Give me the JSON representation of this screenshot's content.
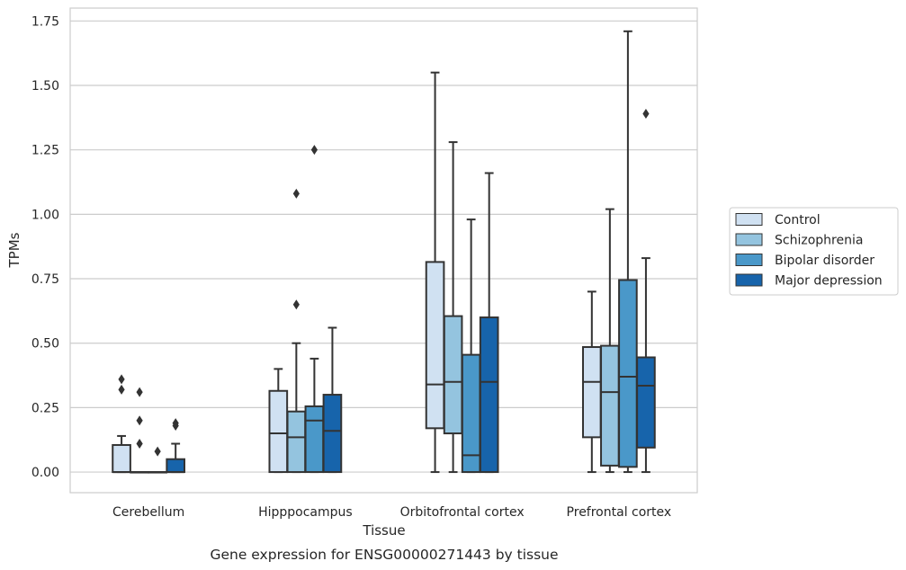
{
  "chart_data": {
    "type": "box",
    "caption": "Gene expression for ENSG00000271443 by tissue",
    "xlabel": "Tissue",
    "ylabel": "TPMs",
    "ylim": [
      -0.08,
      1.8
    ],
    "yticks": [
      "0.00",
      "0.25",
      "0.50",
      "0.75",
      "1.00",
      "1.25",
      "1.50",
      "1.75"
    ],
    "ytick_values": [
      0,
      0.25,
      0.5,
      0.75,
      1.0,
      1.25,
      1.5,
      1.75
    ],
    "grid": "horizontal",
    "legend_position": "right",
    "categories": [
      "Cerebellum",
      "Hipppocampus",
      "Orbitofrontal cortex",
      "Prefrontal cortex"
    ],
    "series": [
      {
        "name": "Control",
        "color": "#d0e1f2",
        "boxes": [
          {
            "q1": 0.0,
            "median": 0.0,
            "q3": 0.105,
            "whisker_low": 0.0,
            "whisker_high": 0.14,
            "outliers": [
              0.36,
              0.32
            ]
          },
          {
            "q1": 0.0,
            "median": 0.15,
            "q3": 0.315,
            "whisker_low": 0.0,
            "whisker_high": 0.4,
            "outliers": []
          },
          {
            "q1": 0.17,
            "median": 0.34,
            "q3": 0.815,
            "whisker_low": 0.0,
            "whisker_high": 1.55,
            "outliers": []
          },
          {
            "q1": 0.135,
            "median": 0.35,
            "q3": 0.485,
            "whisker_low": 0.0,
            "whisker_high": 0.7,
            "outliers": []
          }
        ]
      },
      {
        "name": "Schizophrenia",
        "color": "#94c4df",
        "boxes": [
          {
            "q1": 0.0,
            "median": 0.0,
            "q3": 0.0,
            "whisker_low": 0.0,
            "whisker_high": 0.0,
            "outliers": [
              0.31,
              0.2,
              0.11
            ]
          },
          {
            "q1": 0.0,
            "median": 0.135,
            "q3": 0.235,
            "whisker_low": 0.0,
            "whisker_high": 0.5,
            "outliers": [
              1.08,
              0.65
            ]
          },
          {
            "q1": 0.15,
            "median": 0.35,
            "q3": 0.605,
            "whisker_low": 0.0,
            "whisker_high": 1.28,
            "outliers": []
          },
          {
            "q1": 0.025,
            "median": 0.31,
            "q3": 0.49,
            "whisker_low": 0.0,
            "whisker_high": 1.02,
            "outliers": []
          }
        ]
      },
      {
        "name": "Bipolar disorder",
        "color": "#4a98c9",
        "boxes": [
          {
            "q1": 0.0,
            "median": 0.0,
            "q3": 0.0,
            "whisker_low": 0.0,
            "whisker_high": 0.0,
            "outliers": [
              0.08
            ]
          },
          {
            "q1": 0.0,
            "median": 0.2,
            "q3": 0.255,
            "whisker_low": 0.0,
            "whisker_high": 0.44,
            "outliers": [
              1.25
            ]
          },
          {
            "q1": 0.0,
            "median": 0.065,
            "q3": 0.455,
            "whisker_low": 0.0,
            "whisker_high": 0.98,
            "outliers": []
          },
          {
            "q1": 0.02,
            "median": 0.37,
            "q3": 0.745,
            "whisker_low": 0.0,
            "whisker_high": 1.71,
            "outliers": []
          }
        ]
      },
      {
        "name": "Major depression",
        "color": "#1764ab",
        "boxes": [
          {
            "q1": 0.0,
            "median": 0.0,
            "q3": 0.05,
            "whisker_low": 0.0,
            "whisker_high": 0.11,
            "outliers": [
              0.19,
              0.18
            ]
          },
          {
            "q1": 0.0,
            "median": 0.16,
            "q3": 0.3,
            "whisker_low": 0.0,
            "whisker_high": 0.56,
            "outliers": []
          },
          {
            "q1": 0.0,
            "median": 0.35,
            "q3": 0.6,
            "whisker_low": 0.0,
            "whisker_high": 1.16,
            "outliers": []
          },
          {
            "q1": 0.095,
            "median": 0.335,
            "q3": 0.445,
            "whisker_low": 0.0,
            "whisker_high": 0.83,
            "outliers": [
              1.39
            ]
          }
        ]
      }
    ]
  }
}
